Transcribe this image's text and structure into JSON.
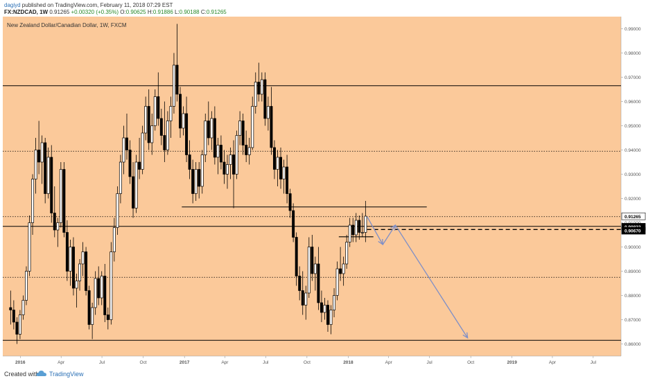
{
  "header": {
    "author": "dagiyd",
    "published": " published on TradingView.com, February 11, 2018 07:29 EST",
    "symbol_line": "FX:NZDCAD, 1W",
    "last": "0.91265",
    "change": "+0.00320 (+0.35%)",
    "o_label": "O:",
    "o": "0.90625",
    "h_label": "H:",
    "h": "0.91886",
    "l_label": "L:",
    "l": "0.90188",
    "c_label": "C:",
    "c": "0.91265"
  },
  "footer": {
    "created_with": "Created with",
    "brand": "TradingView"
  },
  "colors": {
    "chart_bg": "#fbc99a",
    "candle": "#000000",
    "arrow": "#7f8fc7",
    "price_tag_dark": "#000000",
    "price_tag_light": "#ffffff"
  },
  "chart_data": {
    "type": "candlestick",
    "title": "New Zealand Dollar/Canadian Dollar, 1W, FXCM",
    "ylim": [
      0.855,
      0.995
    ],
    "y_ticks": [
      "0.99000",
      "0.98000",
      "0.97000",
      "0.96000",
      "0.95000",
      "0.94000",
      "0.93000",
      "0.92000",
      "0.91000",
      "0.90000",
      "0.89000",
      "0.88000",
      "0.87000",
      "0.86000"
    ],
    "x_ticks": [
      "2016",
      "Apr",
      "Jul",
      "Oct",
      "2017",
      "Apr",
      "Jul",
      "Oct",
      "2018",
      "Apr",
      "Jul",
      "Oct",
      "2019",
      "Apr",
      "Jul"
    ],
    "price_tags": [
      {
        "value": 0.91265,
        "text": "0.91265",
        "style": "light"
      },
      {
        "value": 0.90832,
        "text": "0.90832",
        "style": "dark"
      },
      {
        "value": 0.9067,
        "text": "0.90670",
        "style": "dark"
      }
    ],
    "horizontal_levels": [
      {
        "value": 0.9665,
        "style": "solid",
        "extent": "full"
      },
      {
        "value": 0.9085,
        "style": "solid",
        "extent": "full"
      },
      {
        "value": 0.8615,
        "style": "solid",
        "extent": "full"
      },
      {
        "value": 0.9395,
        "style": "dotted",
        "extent": "full"
      },
      {
        "value": 0.9125,
        "style": "dotted",
        "extent": "full"
      },
      {
        "value": 0.8875,
        "style": "dotted",
        "extent": "full"
      },
      {
        "value": 0.9165,
        "style": "solid",
        "extent": "segment",
        "from": "2016-12-26",
        "to": "2018-06-25"
      },
      {
        "value": 0.9042,
        "style": "solid",
        "extent": "segment",
        "from": "2017-12-11",
        "to": "2018-02-26"
      },
      {
        "value": 0.9072,
        "style": "dashed",
        "extent": "segment",
        "from": "2018-02-12",
        "to": "2019-10-28"
      }
    ],
    "projection_path": [
      {
        "date": "2018-02-12",
        "value": 0.9125
      },
      {
        "date": "2018-03-19",
        "value": 0.901
      },
      {
        "date": "2018-04-16",
        "value": 0.909
      },
      {
        "date": "2018-09-24",
        "value": 0.8625
      }
    ],
    "candles": [
      [
        "2015-12-07",
        0.875,
        0.882,
        0.868,
        0.874
      ],
      [
        "2015-12-14",
        0.874,
        0.878,
        0.866,
        0.869
      ],
      [
        "2015-12-21",
        0.869,
        0.871,
        0.86,
        0.864
      ],
      [
        "2015-12-28",
        0.864,
        0.874,
        0.862,
        0.872
      ],
      [
        "2016-01-04",
        0.872,
        0.88,
        0.87,
        0.878
      ],
      [
        "2016-01-11",
        0.878,
        0.892,
        0.876,
        0.89
      ],
      [
        "2016-01-18",
        0.89,
        0.913,
        0.888,
        0.91
      ],
      [
        "2016-01-25",
        0.91,
        0.93,
        0.905,
        0.928
      ],
      [
        "2016-02-01",
        0.928,
        0.945,
        0.922,
        0.94
      ],
      [
        "2016-02-08",
        0.94,
        0.952,
        0.93,
        0.935
      ],
      [
        "2016-02-15",
        0.935,
        0.946,
        0.926,
        0.943
      ],
      [
        "2016-02-22",
        0.943,
        0.945,
        0.918,
        0.922
      ],
      [
        "2016-02-29",
        0.922,
        0.941,
        0.92,
        0.937
      ],
      [
        "2016-03-07",
        0.937,
        0.942,
        0.91,
        0.914
      ],
      [
        "2016-03-14",
        0.914,
        0.925,
        0.904,
        0.907
      ],
      [
        "2016-03-21",
        0.907,
        0.912,
        0.9,
        0.91
      ],
      [
        "2016-03-28",
        0.91,
        0.935,
        0.908,
        0.932
      ],
      [
        "2016-04-04",
        0.932,
        0.935,
        0.904,
        0.906
      ],
      [
        "2016-04-11",
        0.906,
        0.911,
        0.886,
        0.89
      ],
      [
        "2016-04-18",
        0.89,
        0.903,
        0.884,
        0.9
      ],
      [
        "2016-04-25",
        0.9,
        0.904,
        0.88,
        0.883
      ],
      [
        "2016-05-02",
        0.883,
        0.889,
        0.875,
        0.886
      ],
      [
        "2016-05-09",
        0.886,
        0.895,
        0.882,
        0.893
      ],
      [
        "2016-05-16",
        0.893,
        0.902,
        0.888,
        0.898
      ],
      [
        "2016-05-23",
        0.898,
        0.9,
        0.88,
        0.882
      ],
      [
        "2016-05-30",
        0.882,
        0.884,
        0.866,
        0.868
      ],
      [
        "2016-06-06",
        0.868,
        0.877,
        0.862,
        0.875
      ],
      [
        "2016-06-13",
        0.875,
        0.89,
        0.872,
        0.887
      ],
      [
        "2016-06-20",
        0.887,
        0.892,
        0.876,
        0.879
      ],
      [
        "2016-06-27",
        0.879,
        0.89,
        0.876,
        0.888
      ],
      [
        "2016-07-04",
        0.888,
        0.893,
        0.869,
        0.872
      ],
      [
        "2016-07-11",
        0.872,
        0.875,
        0.866,
        0.87
      ],
      [
        "2016-07-18",
        0.87,
        0.902,
        0.868,
        0.898
      ],
      [
        "2016-07-25",
        0.898,
        0.912,
        0.894,
        0.908
      ],
      [
        "2016-08-01",
        0.908,
        0.925,
        0.905,
        0.922
      ],
      [
        "2016-08-08",
        0.922,
        0.938,
        0.918,
        0.935
      ],
      [
        "2016-08-15",
        0.935,
        0.95,
        0.93,
        0.945
      ],
      [
        "2016-08-22",
        0.945,
        0.955,
        0.936,
        0.94
      ],
      [
        "2016-08-29",
        0.94,
        0.944,
        0.926,
        0.929
      ],
      [
        "2016-09-05",
        0.929,
        0.935,
        0.912,
        0.916
      ],
      [
        "2016-09-12",
        0.916,
        0.938,
        0.914,
        0.935
      ],
      [
        "2016-09-19",
        0.935,
        0.945,
        0.928,
        0.932
      ],
      [
        "2016-09-26",
        0.932,
        0.95,
        0.93,
        0.947
      ],
      [
        "2016-10-03",
        0.947,
        0.962,
        0.944,
        0.958
      ],
      [
        "2016-10-10",
        0.958,
        0.965,
        0.94,
        0.943
      ],
      [
        "2016-10-17",
        0.943,
        0.955,
        0.938,
        0.95
      ],
      [
        "2016-10-24",
        0.95,
        0.965,
        0.948,
        0.962
      ],
      [
        "2016-10-31",
        0.962,
        0.972,
        0.95,
        0.953
      ],
      [
        "2016-11-07",
        0.953,
        0.957,
        0.942,
        0.946
      ],
      [
        "2016-11-14",
        0.946,
        0.96,
        0.935,
        0.94
      ],
      [
        "2016-11-21",
        0.94,
        0.956,
        0.938,
        0.952
      ],
      [
        "2016-11-28",
        0.952,
        0.962,
        0.945,
        0.958
      ],
      [
        "2016-12-05",
        0.958,
        0.98,
        0.955,
        0.975
      ],
      [
        "2016-12-12",
        0.975,
        0.992,
        0.96,
        0.963
      ],
      [
        "2016-12-19",
        0.963,
        0.966,
        0.945,
        0.949
      ],
      [
        "2016-12-26",
        0.949,
        0.958,
        0.946,
        0.955
      ],
      [
        "2017-01-02",
        0.955,
        0.962,
        0.935,
        0.938
      ],
      [
        "2017-01-09",
        0.938,
        0.944,
        0.928,
        0.932
      ],
      [
        "2017-01-16",
        0.932,
        0.936,
        0.918,
        0.922
      ],
      [
        "2017-01-23",
        0.922,
        0.935,
        0.919,
        0.932
      ],
      [
        "2017-01-30",
        0.932,
        0.935,
        0.92,
        0.925
      ],
      [
        "2017-02-06",
        0.925,
        0.94,
        0.922,
        0.938
      ],
      [
        "2017-02-13",
        0.938,
        0.955,
        0.935,
        0.952
      ],
      [
        "2017-02-20",
        0.952,
        0.96,
        0.942,
        0.945
      ],
      [
        "2017-02-27",
        0.945,
        0.956,
        0.94,
        0.953
      ],
      [
        "2017-03-06",
        0.953,
        0.958,
        0.934,
        0.937
      ],
      [
        "2017-03-13",
        0.937,
        0.945,
        0.93,
        0.942
      ],
      [
        "2017-03-20",
        0.942,
        0.946,
        0.932,
        0.935
      ],
      [
        "2017-03-27",
        0.935,
        0.94,
        0.926,
        0.93
      ],
      [
        "2017-04-03",
        0.93,
        0.938,
        0.924,
        0.934
      ],
      [
        "2017-04-10",
        0.934,
        0.941,
        0.928,
        0.938
      ],
      [
        "2017-04-17",
        0.938,
        0.944,
        0.916,
        0.93
      ],
      [
        "2017-04-24",
        0.93,
        0.948,
        0.928,
        0.946
      ],
      [
        "2017-05-01",
        0.946,
        0.956,
        0.942,
        0.952
      ],
      [
        "2017-05-08",
        0.952,
        0.955,
        0.938,
        0.942
      ],
      [
        "2017-05-15",
        0.942,
        0.948,
        0.935,
        0.938
      ],
      [
        "2017-05-22",
        0.938,
        0.945,
        0.934,
        0.941
      ],
      [
        "2017-05-29",
        0.941,
        0.962,
        0.94,
        0.958
      ],
      [
        "2017-06-05",
        0.958,
        0.972,
        0.955,
        0.968
      ],
      [
        "2017-06-12",
        0.968,
        0.976,
        0.96,
        0.963
      ],
      [
        "2017-06-19",
        0.963,
        0.972,
        0.96,
        0.969
      ],
      [
        "2017-06-26",
        0.969,
        0.972,
        0.95,
        0.953
      ],
      [
        "2017-07-03",
        0.953,
        0.962,
        0.948,
        0.958
      ],
      [
        "2017-07-10",
        0.958,
        0.966,
        0.938,
        0.941
      ],
      [
        "2017-07-17",
        0.941,
        0.944,
        0.928,
        0.932
      ],
      [
        "2017-07-24",
        0.932,
        0.94,
        0.925,
        0.937
      ],
      [
        "2017-07-31",
        0.937,
        0.941,
        0.924,
        0.928
      ],
      [
        "2017-08-07",
        0.928,
        0.936,
        0.922,
        0.933
      ],
      [
        "2017-08-14",
        0.933,
        0.938,
        0.918,
        0.922
      ],
      [
        "2017-08-21",
        0.922,
        0.924,
        0.912,
        0.915
      ],
      [
        "2017-08-28",
        0.915,
        0.918,
        0.902,
        0.904
      ],
      [
        "2017-09-04",
        0.904,
        0.906,
        0.884,
        0.888
      ],
      [
        "2017-09-11",
        0.888,
        0.892,
        0.878,
        0.882
      ],
      [
        "2017-09-18",
        0.882,
        0.89,
        0.872,
        0.876
      ],
      [
        "2017-09-25",
        0.876,
        0.884,
        0.87,
        0.881
      ],
      [
        "2017-10-02",
        0.881,
        0.904,
        0.879,
        0.9
      ],
      [
        "2017-10-09",
        0.9,
        0.905,
        0.886,
        0.889
      ],
      [
        "2017-10-16",
        0.889,
        0.896,
        0.882,
        0.893
      ],
      [
        "2017-10-23",
        0.893,
        0.9,
        0.874,
        0.877
      ],
      [
        "2017-10-30",
        0.877,
        0.882,
        0.869,
        0.873
      ],
      [
        "2017-11-06",
        0.873,
        0.879,
        0.87,
        0.876
      ],
      [
        "2017-11-13",
        0.876,
        0.878,
        0.865,
        0.868
      ],
      [
        "2017-11-20",
        0.868,
        0.876,
        0.864,
        0.874
      ],
      [
        "2017-11-27",
        0.874,
        0.883,
        0.871,
        0.88
      ],
      [
        "2017-12-04",
        0.88,
        0.894,
        0.878,
        0.891
      ],
      [
        "2017-12-11",
        0.891,
        0.9,
        0.886,
        0.889
      ],
      [
        "2017-12-18",
        0.889,
        0.896,
        0.884,
        0.893
      ],
      [
        "2017-12-25",
        0.893,
        0.905,
        0.891,
        0.902
      ],
      [
        "2018-01-01",
        0.902,
        0.912,
        0.9,
        0.909
      ],
      [
        "2018-01-08",
        0.909,
        0.912,
        0.902,
        0.905
      ],
      [
        "2018-01-15",
        0.905,
        0.914,
        0.902,
        0.911
      ],
      [
        "2018-01-22",
        0.911,
        0.913,
        0.903,
        0.906
      ],
      [
        "2018-01-29",
        0.906,
        0.914,
        0.904,
        0.906
      ],
      [
        "2018-02-05",
        0.906,
        0.919,
        0.902,
        0.9127
      ]
    ]
  }
}
